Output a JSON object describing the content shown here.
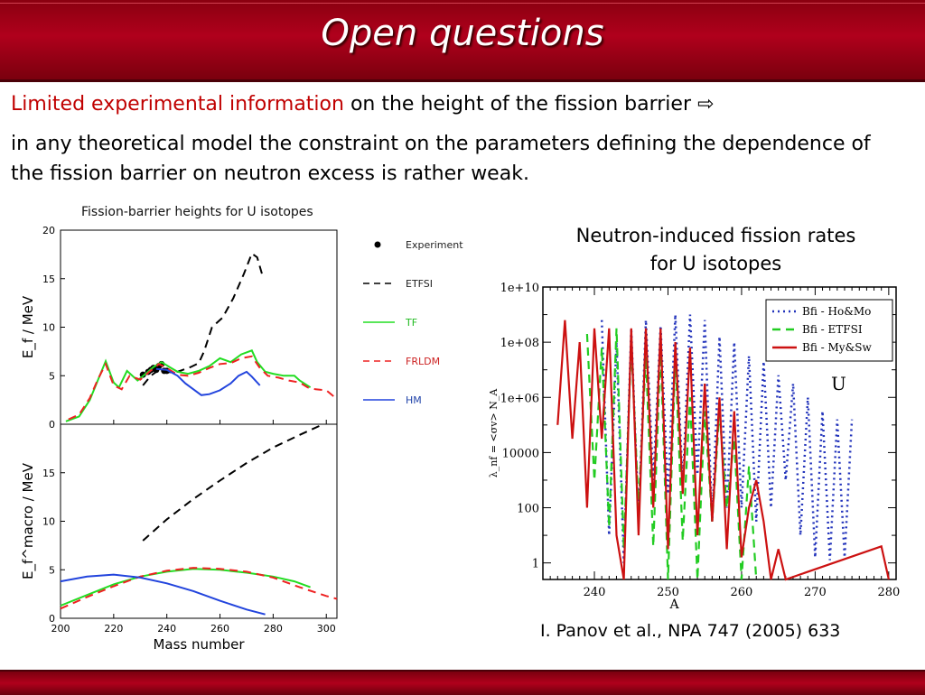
{
  "slide": {
    "title": "Open questions",
    "line1_red": "Limited experimental information",
    "line1_black": "on the height of the fission barrier",
    "line1_arrow": "⇨",
    "paragraph": "in any theoretical model the constraint on the parameters defining the dependence of the fission barrier on neutron excess is rather weak.",
    "right_caption": "Neutron-induced fission rates for U isotopes",
    "citation": "I. Panov et al., NPA 747 (2005) 633"
  },
  "colors": {
    "header": "#a00018",
    "red_text": "#c00000",
    "etfsi": "#000000",
    "tf": "#22dd22",
    "frldm": "#ee2222",
    "hm": "#2244dd"
  },
  "chart_data": [
    {
      "type": "line",
      "title": "Fission-barrier heights for U isotopes",
      "ylabel": "E_f / MeV",
      "ylim": [
        0,
        20
      ],
      "yticks": [
        "0",
        "5",
        "10",
        "15",
        "20"
      ],
      "xlim": [
        200,
        304
      ],
      "legend": [
        "Experiment",
        "ETFSI",
        "TF",
        "FRLDM",
        "HM"
      ],
      "legend_position": "right",
      "series": [
        {
          "name": "Experiment",
          "style": "dots",
          "color": "#000000",
          "points": [
            [
              231,
              5.1
            ],
            [
              233,
              5.4
            ],
            [
              234,
              5.6
            ],
            [
              235,
              5.8
            ],
            [
              236,
              5.6
            ],
            [
              237,
              6.0
            ],
            [
              238,
              6.2
            ],
            [
              239,
              5.5
            ],
            [
              240,
              5.5
            ]
          ]
        },
        {
          "name": "ETFSI",
          "style": "dashed",
          "color": "#000000",
          "points": [
            [
              231,
              4.0
            ],
            [
              234,
              5.0
            ],
            [
              237,
              5.6
            ],
            [
              240,
              5.4
            ],
            [
              243,
              5.3
            ],
            [
              246,
              5.6
            ],
            [
              249,
              5.9
            ],
            [
              252,
              6.3
            ],
            [
              254,
              7.5
            ],
            [
              257,
              10.0
            ],
            [
              261,
              11.0
            ],
            [
              265,
              13.0
            ],
            [
              269,
              15.5
            ],
            [
              272,
              17.6
            ],
            [
              274,
              17.2
            ],
            [
              276,
              15.3
            ]
          ]
        },
        {
          "name": "TF",
          "style": "solid",
          "color": "#22dd22",
          "points": [
            [
              202,
              0.3
            ],
            [
              207,
              0.8
            ],
            [
              211,
              2.5
            ],
            [
              214,
              4.5
            ],
            [
              217,
              6.5
            ],
            [
              220,
              4.3
            ],
            [
              222,
              3.8
            ],
            [
              225,
              5.5
            ],
            [
              229,
              4.5
            ],
            [
              232,
              5.2
            ],
            [
              235,
              5.9
            ],
            [
              238,
              6.4
            ],
            [
              241,
              5.9
            ],
            [
              244,
              5.4
            ],
            [
              248,
              5.2
            ],
            [
              252,
              5.5
            ],
            [
              256,
              6.0
            ],
            [
              260,
              6.8
            ],
            [
              264,
              6.4
            ],
            [
              268,
              7.2
            ],
            [
              272,
              7.6
            ],
            [
              274,
              6.4
            ],
            [
              277,
              5.4
            ],
            [
              280,
              5.2
            ],
            [
              284,
              5.0
            ],
            [
              288,
              5.0
            ],
            [
              290,
              4.5
            ],
            [
              294,
              3.8
            ]
          ]
        },
        {
          "name": "FRLDM",
          "style": "dashed",
          "color": "#ee2222",
          "points": [
            [
              203,
              0.5
            ],
            [
              207,
              1.0
            ],
            [
              211,
              2.7
            ],
            [
              214,
              4.6
            ],
            [
              217,
              6.2
            ],
            [
              220,
              4.0
            ],
            [
              223,
              3.6
            ],
            [
              226,
              5.0
            ],
            [
              230,
              4.6
            ],
            [
              233,
              5.3
            ],
            [
              237,
              6.2
            ],
            [
              240,
              5.8
            ],
            [
              244,
              5.1
            ],
            [
              248,
              5.0
            ],
            [
              252,
              5.3
            ],
            [
              256,
              5.8
            ],
            [
              260,
              6.2
            ],
            [
              264,
              6.3
            ],
            [
              268,
              6.8
            ],
            [
              272,
              7.0
            ],
            [
              275,
              5.8
            ],
            [
              278,
              5.0
            ],
            [
              282,
              4.8
            ],
            [
              286,
              4.5
            ],
            [
              290,
              4.3
            ],
            [
              293,
              3.8
            ],
            [
              296,
              3.6
            ],
            [
              300,
              3.5
            ],
            [
              304,
              2.6
            ]
          ]
        },
        {
          "name": "HM",
          "style": "solid",
          "color": "#2244dd",
          "points": [
            [
              236,
              5.7
            ],
            [
              240,
              5.6
            ],
            [
              244,
              5.0
            ],
            [
              247,
              4.2
            ],
            [
              250,
              3.6
            ],
            [
              253,
              3.0
            ],
            [
              256,
              3.1
            ],
            [
              260,
              3.5
            ],
            [
              264,
              4.2
            ],
            [
              267,
              5.0
            ],
            [
              270,
              5.4
            ],
            [
              272,
              4.9
            ],
            [
              275,
              4.0
            ]
          ]
        }
      ]
    },
    {
      "type": "line",
      "ylabel": "E_f^macro / MeV",
      "xlabel": "Mass number",
      "ylim": [
        0,
        20
      ],
      "yticks": [
        "0",
        "5",
        "10",
        "15"
      ],
      "xlim": [
        200,
        304
      ],
      "xticks": [
        "200",
        "220",
        "240",
        "260",
        "280",
        "300"
      ],
      "series": [
        {
          "name": "ETFSI",
          "style": "dashed",
          "color": "#000000",
          "points": [
            [
              231,
              8.0
            ],
            [
              240,
              10.2
            ],
            [
              250,
              12.3
            ],
            [
              260,
              14.2
            ],
            [
              270,
              16.0
            ],
            [
              280,
              17.6
            ],
            [
              290,
              18.9
            ],
            [
              298,
              19.9
            ]
          ]
        },
        {
          "name": "TF",
          "style": "solid",
          "color": "#22dd22",
          "points": [
            [
              200,
              1.3
            ],
            [
              210,
              2.4
            ],
            [
              220,
              3.5
            ],
            [
              230,
              4.3
            ],
            [
              240,
              4.8
            ],
            [
              250,
              5.1
            ],
            [
              260,
              5.0
            ],
            [
              270,
              4.7
            ],
            [
              280,
              4.3
            ],
            [
              288,
              3.8
            ],
            [
              294,
              3.2
            ]
          ]
        },
        {
          "name": "FRLDM",
          "style": "dashed",
          "color": "#ee2222",
          "points": [
            [
              200,
              1.0
            ],
            [
              210,
              2.2
            ],
            [
              220,
              3.3
            ],
            [
              230,
              4.3
            ],
            [
              240,
              4.9
            ],
            [
              250,
              5.2
            ],
            [
              260,
              5.1
            ],
            [
              270,
              4.8
            ],
            [
              280,
              4.2
            ],
            [
              290,
              3.2
            ],
            [
              300,
              2.3
            ],
            [
              304,
              2.0
            ]
          ]
        },
        {
          "name": "HM",
          "style": "solid",
          "color": "#2244dd",
          "points": [
            [
              200,
              3.8
            ],
            [
              210,
              4.3
            ],
            [
              220,
              4.5
            ],
            [
              230,
              4.2
            ],
            [
              240,
              3.6
            ],
            [
              250,
              2.8
            ],
            [
              260,
              1.8
            ],
            [
              270,
              0.9
            ],
            [
              277,
              0.4
            ]
          ]
        }
      ]
    },
    {
      "type": "line",
      "ylabel": "λ_nf = <σv> N_A",
      "xlabel": "A",
      "log_y": true,
      "ylim_exponent": [
        -0.6,
        10
      ],
      "yticks": [
        "1",
        "100",
        "10000",
        "1e+06",
        "1e+08",
        "1e+10"
      ],
      "xlim": [
        233,
        281
      ],
      "xticks": [
        "240",
        "250",
        "260",
        "270",
        "280"
      ],
      "annotation": "U",
      "legend": [
        "Bfi - Ho&Mo",
        "Bfi - ETFSI",
        "Bfi - My&Sw"
      ],
      "legend_position": "top-right",
      "series": [
        {
          "name": "Bfi - Ho&Mo",
          "style": "dotted",
          "color": "#2233bb",
          "points": [
            [
              241,
              8.8
            ],
            [
              242,
              1.0
            ],
            [
              243,
              8.0
            ],
            [
              244,
              0.0
            ],
            [
              245,
              8.5
            ],
            [
              246,
              1.5
            ],
            [
              247,
              8.8
            ],
            [
              248,
              3.0
            ],
            [
              249,
              8.6
            ],
            [
              250,
              2.5
            ],
            [
              251,
              9.0
            ],
            [
              252,
              2.8
            ],
            [
              253,
              9.0
            ],
            [
              254,
              3.2
            ],
            [
              255,
              8.8
            ],
            [
              256,
              1.5
            ],
            [
              257,
              8.2
            ],
            [
              258,
              2.0
            ],
            [
              259,
              8.0
            ],
            [
              260,
              2.0
            ],
            [
              261,
              7.5
            ],
            [
              262,
              1.5
            ],
            [
              263,
              7.3
            ],
            [
              264,
              2.0
            ],
            [
              265,
              6.8
            ],
            [
              266,
              3.0
            ],
            [
              267,
              6.5
            ],
            [
              268,
              1.0
            ],
            [
              269,
              6.0
            ],
            [
              270,
              0.2
            ],
            [
              271,
              5.5
            ],
            [
              272,
              0.1
            ],
            [
              273,
              5.2
            ],
            [
              274,
              0.2
            ],
            [
              275,
              5.2
            ]
          ]
        },
        {
          "name": "Bfi - ETFSI",
          "style": "dashed",
          "color": "#22cc22",
          "points": [
            [
              239,
              8.3
            ],
            [
              240,
              3.0
            ],
            [
              241,
              7.8
            ],
            [
              242,
              1.3
            ],
            [
              243,
              8.5
            ],
            [
              244,
              0.5
            ],
            [
              245,
              8.0
            ],
            [
              246,
              2.0
            ],
            [
              247,
              7.5
            ],
            [
              248,
              0.6
            ],
            [
              249,
              7.8
            ],
            [
              250,
              -0.6
            ],
            [
              251,
              7.5
            ],
            [
              252,
              0.8
            ],
            [
              253,
              6.0
            ],
            [
              254,
              -0.6
            ],
            [
              255,
              5.5
            ],
            [
              256,
              1.5
            ],
            [
              257,
              5.5
            ],
            [
              258,
              2.0
            ],
            [
              259,
              4.5
            ],
            [
              260,
              -0.6
            ],
            [
              261,
              3.5
            ],
            [
              262,
              -0.6
            ]
          ]
        },
        {
          "name": "Bfi - My&Sw",
          "style": "solid",
          "color": "#cc1111",
          "points": [
            [
              235,
              5.0
            ],
            [
              236,
              8.8
            ],
            [
              237,
              4.5
            ],
            [
              238,
              8.0
            ],
            [
              239,
              2.0
            ],
            [
              240,
              8.5
            ],
            [
              241,
              4.5
            ],
            [
              242,
              8.5
            ],
            [
              243,
              1.0
            ],
            [
              244,
              -0.6
            ],
            [
              245,
              8.5
            ],
            [
              246,
              1.0
            ],
            [
              247,
              8.5
            ],
            [
              248,
              2.0
            ],
            [
              249,
              8.5
            ],
            [
              250,
              0.5
            ],
            [
              251,
              8.0
            ],
            [
              252,
              2.5
            ],
            [
              253,
              7.8
            ],
            [
              254,
              1.0
            ],
            [
              255,
              6.5
            ],
            [
              256,
              1.5
            ],
            [
              257,
              6.0
            ],
            [
              258,
              0.5
            ],
            [
              259,
              5.5
            ],
            [
              260,
              0.2
            ],
            [
              261,
              2.0
            ],
            [
              262,
              3.0
            ],
            [
              263,
              1.5
            ],
            [
              264,
              -0.6
            ],
            [
              265,
              0.5
            ],
            [
              266,
              -0.6
            ],
            [
              279,
              0.6
            ],
            [
              280,
              -0.6
            ]
          ]
        }
      ]
    }
  ]
}
